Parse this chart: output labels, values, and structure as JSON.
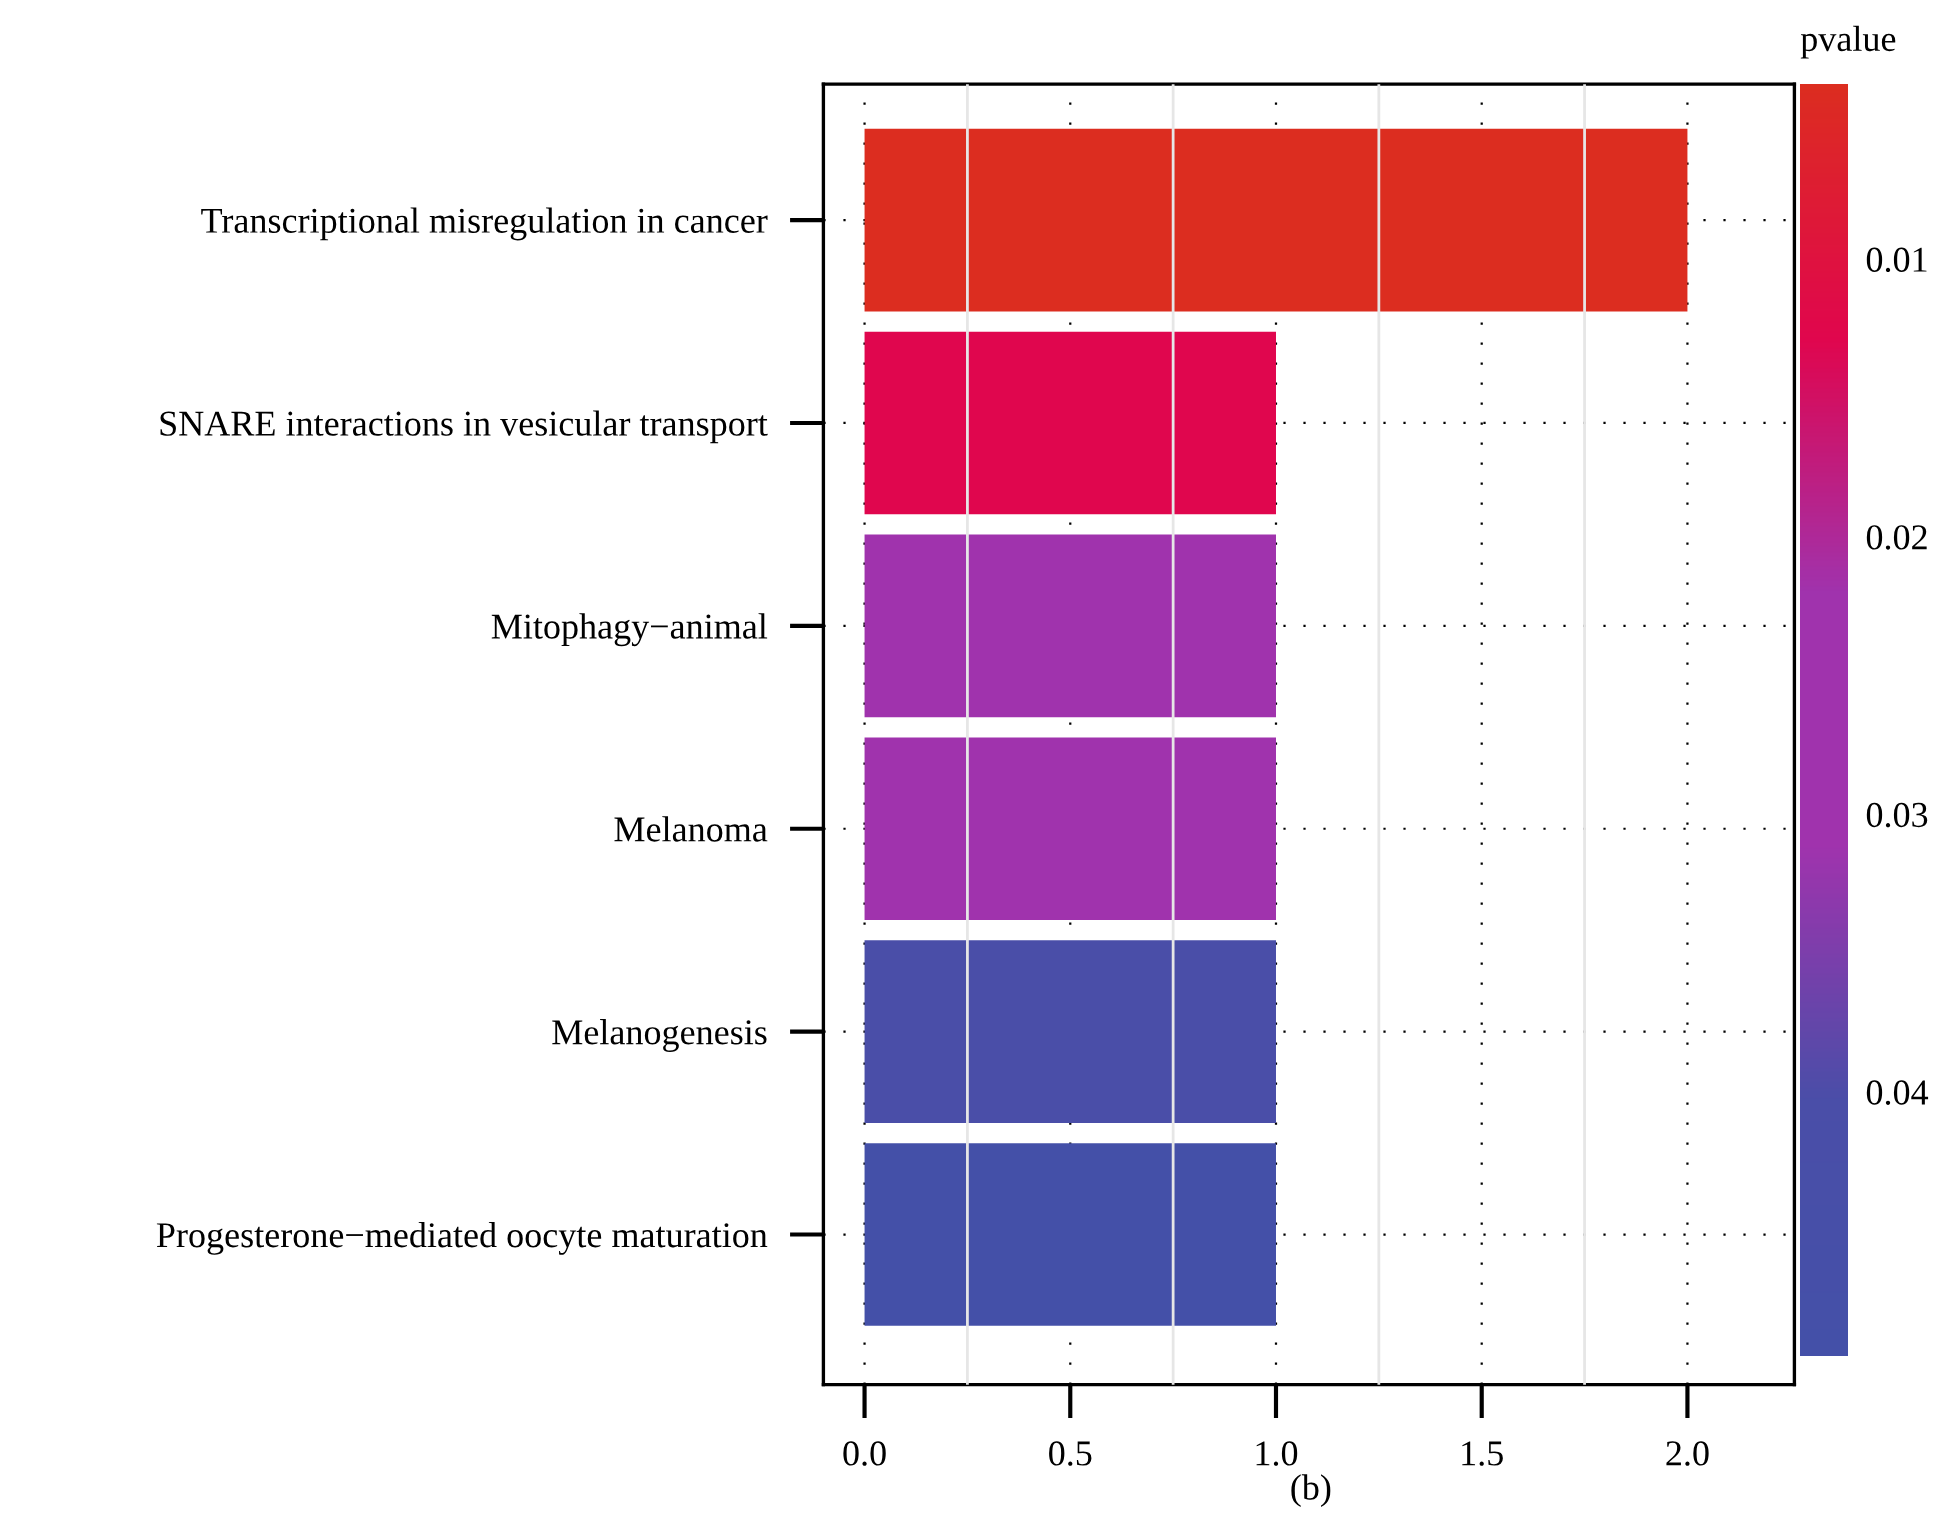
{
  "chart_data": {
    "type": "bar",
    "orientation": "horizontal",
    "categories": [
      "Transcriptional misregulation in cancer",
      "SNARE interactions in vesicular transport",
      "Mitophagy−animal",
      "Melanoma",
      "Melanogenesis",
      "Progesterone−mediated oocyte maturation"
    ],
    "values": [
      2,
      1,
      1,
      1,
      1,
      1
    ],
    "colors": [
      "#dc2d20",
      "#e0064e",
      "#a033ad",
      "#a033ad",
      "#4a4ea8",
      "#4450a8"
    ],
    "xlim": [
      -0.1,
      2.26
    ],
    "xticks": [
      {
        "value": 0,
        "label": "0.0"
      },
      0.5,
      {
        "value": 1,
        "label": "1.0"
      },
      1.5,
      {
        "value": 2,
        "label": "2.0"
      }
    ],
    "clabel": "pvalue",
    "clim": [
      0.0495,
      0.0037
    ],
    "cticks": [
      0.01,
      0.02,
      0.03,
      0.04
    ],
    "grid": true,
    "annotations": [
      "(b)"
    ]
  }
}
